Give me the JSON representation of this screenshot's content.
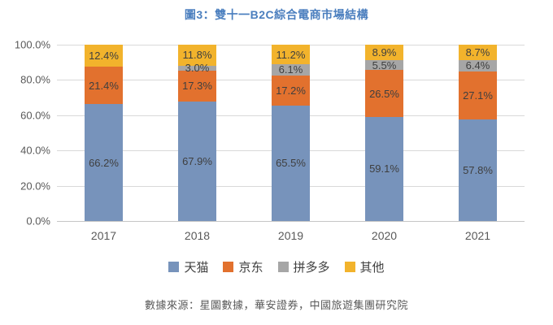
{
  "page": {
    "title": "圖3：雙十一B2C綜合電商市場結構",
    "source": "數據來源：星圖數據，華安證券，中國旅遊集團研究院"
  },
  "colors": {
    "title_text": "#4A7EBE",
    "axis_text": "#595959",
    "data_label_text": "#3F3F3F",
    "gridline": "#D9D9D9"
  },
  "chart_data": {
    "type": "bar",
    "stacked": true,
    "title": "圖3：雙十一B2C綜合電商市場結構",
    "categories": [
      "2017",
      "2018",
      "2019",
      "2020",
      "2021"
    ],
    "series": [
      {
        "name": "天猫",
        "color": "#7793BB",
        "values": [
          66.2,
          67.9,
          65.5,
          59.1,
          57.8
        ]
      },
      {
        "name": "京东",
        "color": "#E2712E",
        "values": [
          21.4,
          17.3,
          17.2,
          26.5,
          27.1
        ]
      },
      {
        "name": "拼多多",
        "color": "#A6A6A6",
        "values": [
          0,
          3.0,
          6.1,
          5.5,
          6.4
        ]
      },
      {
        "name": "其他",
        "color": "#F2B32C",
        "values": [
          12.4,
          11.8,
          11.2,
          8.9,
          8.7
        ]
      }
    ],
    "y_ticks": [
      "0.0%",
      "20.0%",
      "40.0%",
      "60.0%",
      "80.0%",
      "100.0%"
    ],
    "ylim": [
      0,
      100
    ],
    "grid": true,
    "legend_position": "bottom",
    "data_labels": true
  }
}
